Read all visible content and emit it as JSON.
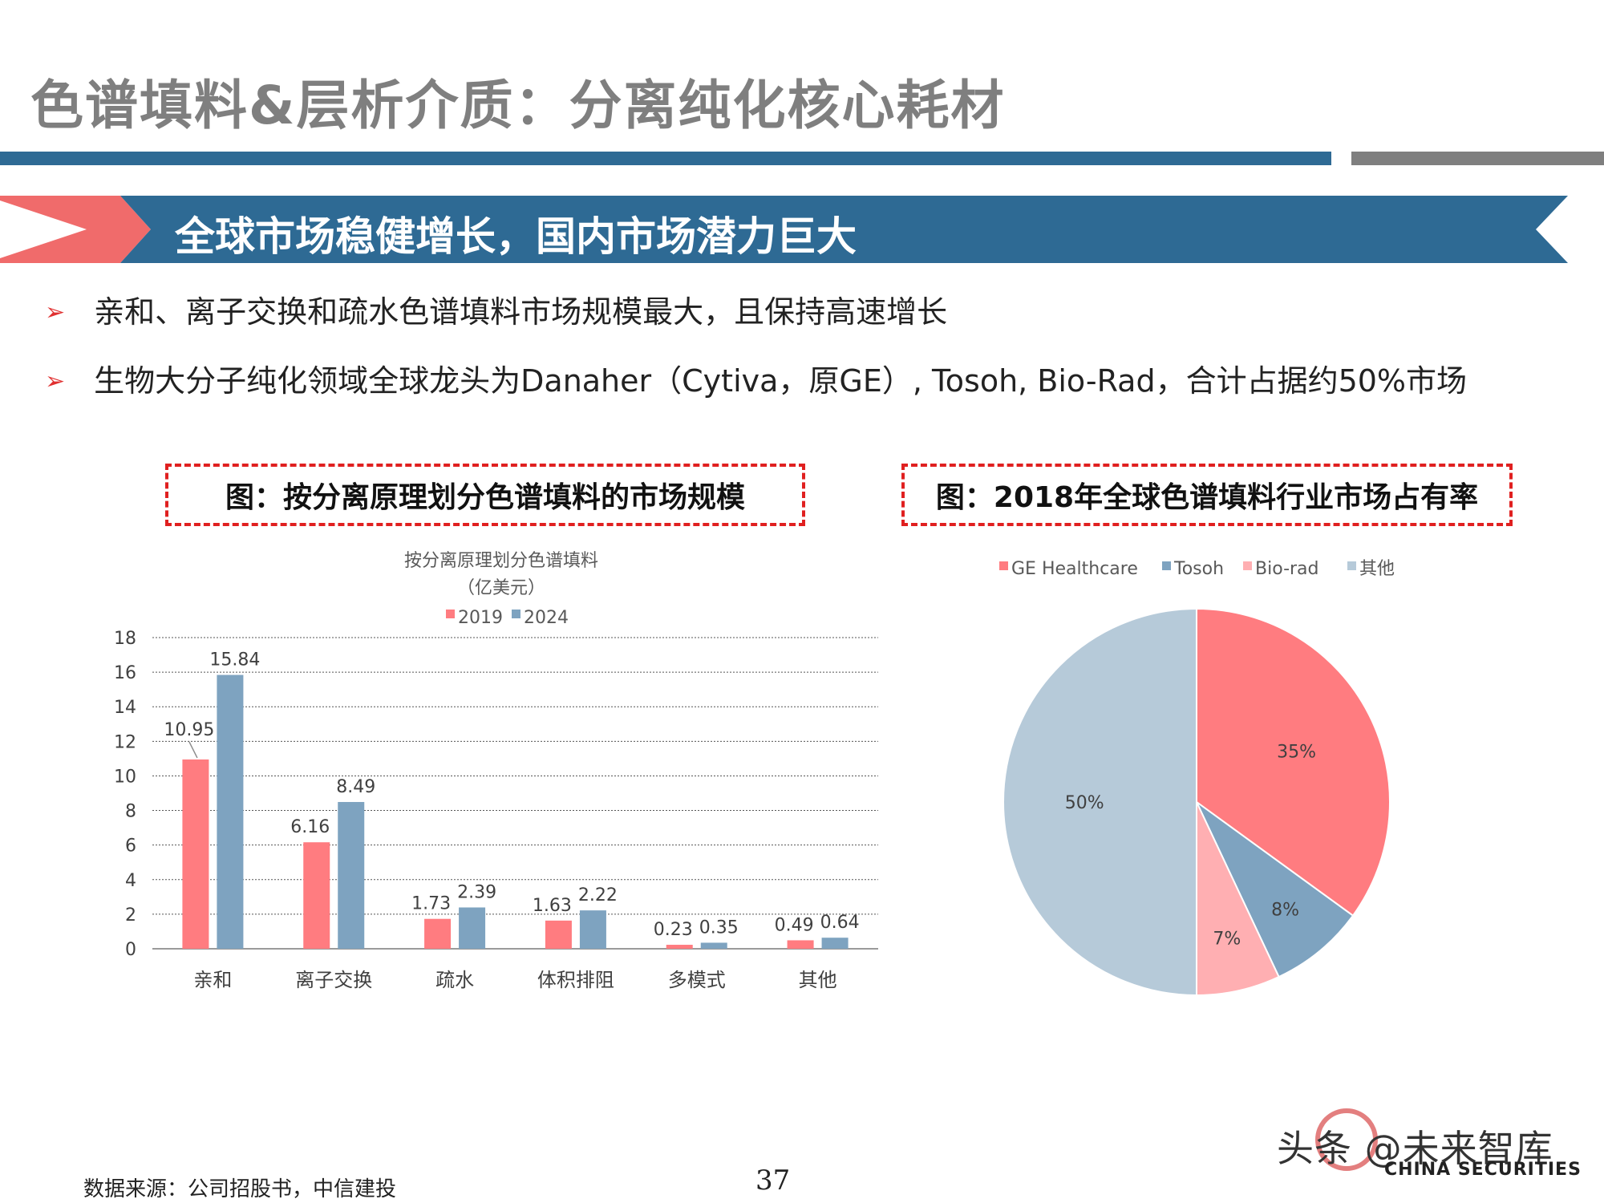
{
  "slide": {
    "title": "色谱填料&层析介质：分离纯化核心耗材",
    "banner": "全球市场稳健增长，国内市场潜力巨大",
    "bullets": [
      "亲和、离子交换和疏水色谱填料市场规模最大，且保持高速增长",
      "生物大分子纯化领域全球龙头为Danaher（Cytiva，原GE）, Tosoh, Bio-Rad，合计占据约50%市场"
    ],
    "bullet_marker": "➢",
    "left_caption": "图：按分离原理划分色谱填料的市场规模",
    "right_caption": "图：2018年全球色谱填料行业市场占有率",
    "source": "数据来源：公司招股书，中信建投",
    "page_number": "37",
    "watermark": "头条 @未来智库",
    "logo_text": "CHINA SECURITIES"
  },
  "colors": {
    "title_gray": "#7f7f7f",
    "banner_blue": "#2e6a94",
    "banner_red": "#f06b6b",
    "series_2019": "#ff7c80",
    "series_2024": "#7ea3c0",
    "pie_ge": "#ff7c80",
    "pie_tosoh": "#7ea3c0",
    "pie_biorad": "#ffafb2",
    "pie_other": "#b6cad9"
  },
  "chart_data": [
    {
      "type": "bar",
      "title": "按分离原理划分色谱填料",
      "subtitle": "（亿美元）",
      "categories": [
        "亲和",
        "离子交换",
        "疏水",
        "体积排阻",
        "多模式",
        "其他"
      ],
      "series": [
        {
          "name": "2019",
          "values": [
            10.95,
            6.16,
            1.73,
            1.63,
            0.23,
            0.49
          ],
          "labels": [
            "10.95",
            "6.16",
            "1.73",
            "1.63",
            "0.23",
            "0.49"
          ]
        },
        {
          "name": "2024",
          "values": [
            15.84,
            8.49,
            2.39,
            2.22,
            0.35,
            0.64
          ],
          "labels": [
            "15.84",
            "8.49",
            "2.39",
            "2.22",
            "0.35",
            "0.64"
          ]
        }
      ],
      "ylim": [
        0,
        18
      ],
      "yticks": [
        0,
        2,
        4,
        6,
        8,
        10,
        12,
        14,
        16,
        18
      ],
      "grid": true,
      "legend": "top"
    },
    {
      "type": "pie",
      "slices": [
        {
          "name": "GE Healthcare",
          "value": 35,
          "label": "35%"
        },
        {
          "name": "Tosoh",
          "value": 8,
          "label": "8%"
        },
        {
          "name": "Bio-rad",
          "value": 7,
          "label": "7%"
        },
        {
          "name": "其他",
          "value": 50,
          "label": "50%"
        }
      ],
      "legend": "top"
    }
  ]
}
